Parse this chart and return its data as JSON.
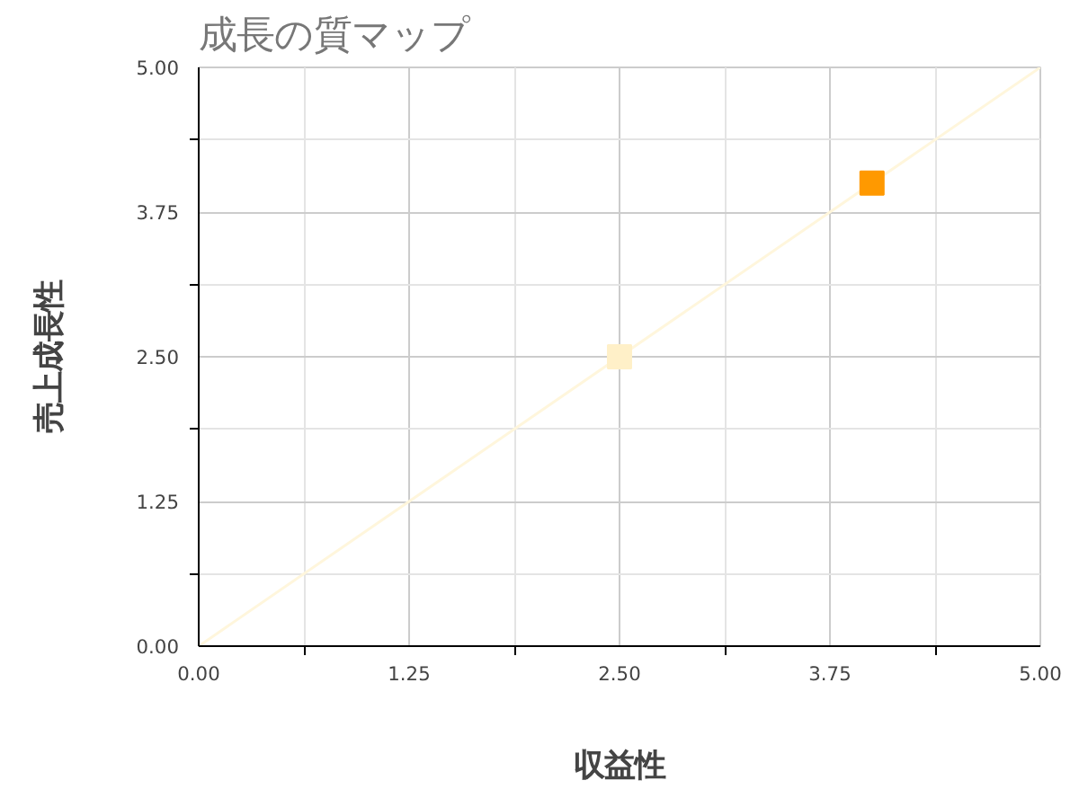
{
  "chart_data": {
    "type": "scatter",
    "title": "成長の質マップ",
    "xlabel": "収益性",
    "ylabel": "売上成長性",
    "xlim": [
      0,
      5
    ],
    "ylim": [
      0,
      5
    ],
    "xticks": [
      {
        "value": 0,
        "label": "0.00"
      },
      {
        "value": 0.625,
        "label": null
      },
      {
        "value": 1.25,
        "label": "1.25"
      },
      {
        "value": 1.875,
        "label": null
      },
      {
        "value": 2.5,
        "label": "2.50"
      },
      {
        "value": 3.125,
        "label": null
      },
      {
        "value": 3.75,
        "label": "3.75"
      },
      {
        "value": 4.375,
        "label": null
      },
      {
        "value": 5,
        "label": "5.00"
      }
    ],
    "yticks": [
      {
        "value": 0,
        "label": "0.00"
      },
      {
        "value": 0.625,
        "label": null
      },
      {
        "value": 1.25,
        "label": "1.25"
      },
      {
        "value": 1.875,
        "label": null
      },
      {
        "value": 2.5,
        "label": "2.50"
      },
      {
        "value": 3.125,
        "label": null
      },
      {
        "value": 3.75,
        "label": "3.75"
      },
      {
        "value": 4.375,
        "label": null
      },
      {
        "value": 5,
        "label": "5.00"
      }
    ],
    "grid": true,
    "series": [
      {
        "type": "line",
        "marker": "none",
        "color": "#fff6dc",
        "x": [
          0,
          5
        ],
        "values": [
          0,
          5
        ]
      },
      {
        "marker": "square",
        "color": "#fff0c8",
        "x": [
          2.5
        ],
        "values": [
          2.5
        ]
      },
      {
        "marker": "square",
        "color": "#ff9900",
        "x": [
          4.0
        ],
        "values": [
          4.0
        ]
      }
    ]
  }
}
